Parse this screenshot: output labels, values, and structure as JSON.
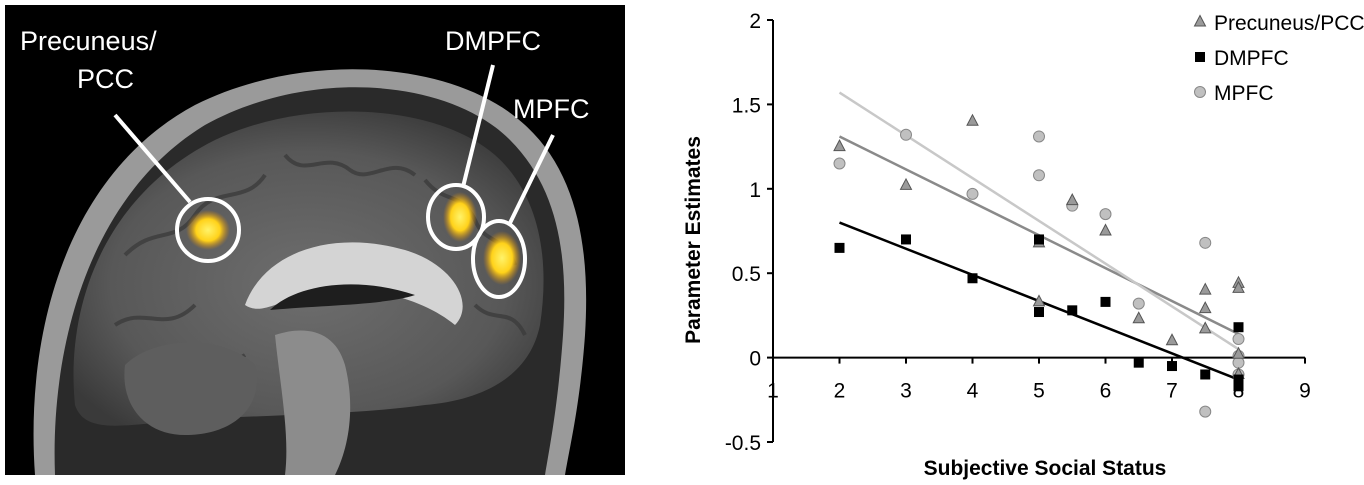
{
  "brain_image": {
    "labels": {
      "precuneus_line1": "Precuneus/",
      "precuneus_line2": "PCC",
      "dmpfc": "DMPFC",
      "mpfc": "MPFC"
    },
    "colors": {
      "background": "#000000",
      "activation": "#ffd21a",
      "ring": "#ffffff"
    }
  },
  "chart_data": {
    "type": "scatter",
    "title": "",
    "xlabel": "Subjective Social Status",
    "ylabel": "Parameter Estimates",
    "xlim": [
      1,
      9
    ],
    "ylim": [
      -0.5,
      2
    ],
    "x_ticks": [
      "1",
      "2",
      "3",
      "4",
      "5",
      "6",
      "7",
      "8",
      "9"
    ],
    "y_ticks": [
      "-0.5",
      "0",
      "0.5",
      "1",
      "1.5",
      "2"
    ],
    "x_tick_values": [
      1,
      2,
      3,
      4,
      5,
      6,
      7,
      8,
      9
    ],
    "y_tick_values": [
      -0.5,
      0,
      0.5,
      1,
      1.5,
      2
    ],
    "grid": false,
    "legend_position": "top-right",
    "series": [
      {
        "name": "Precuneus/PCC",
        "marker": "triangle",
        "color": "#9a9a9a",
        "points": [
          [
            2,
            1.25
          ],
          [
            3,
            1.02
          ],
          [
            4,
            1.4
          ],
          [
            5,
            0.68
          ],
          [
            5,
            0.33
          ],
          [
            5.5,
            0.93
          ],
          [
            6,
            0.75
          ],
          [
            6.5,
            0.23
          ],
          [
            7,
            0.1
          ],
          [
            7.5,
            0.4
          ],
          [
            7.5,
            0.29
          ],
          [
            7.5,
            0.17
          ],
          [
            8,
            0.44
          ],
          [
            8,
            0.41
          ],
          [
            8,
            0.02
          ],
          [
            8,
            -0.1
          ]
        ],
        "fit": [
          [
            2,
            1.31
          ],
          [
            8,
            0.14
          ]
        ]
      },
      {
        "name": "DMPFC",
        "marker": "square",
        "color": "#000000",
        "points": [
          [
            2,
            0.65
          ],
          [
            3,
            0.7
          ],
          [
            4,
            0.47
          ],
          [
            5,
            0.7
          ],
          [
            5,
            0.27
          ],
          [
            5.5,
            0.28
          ],
          [
            6,
            0.33
          ],
          [
            6.5,
            -0.03
          ],
          [
            7,
            -0.05
          ],
          [
            7.5,
            -0.1
          ],
          [
            8,
            0.18
          ],
          [
            8,
            -0.13
          ],
          [
            8,
            -0.17
          ]
        ],
        "fit": [
          [
            2,
            0.8
          ],
          [
            8,
            -0.13
          ]
        ]
      },
      {
        "name": "MPFC",
        "marker": "circle",
        "color": "#c0c0c0",
        "points": [
          [
            2,
            1.15
          ],
          [
            3,
            1.32
          ],
          [
            4,
            0.97
          ],
          [
            5,
            1.31
          ],
          [
            5,
            1.08
          ],
          [
            5.5,
            0.9
          ],
          [
            6,
            0.85
          ],
          [
            6.5,
            0.32
          ],
          [
            7.5,
            0.68
          ],
          [
            7.5,
            -0.32
          ],
          [
            8,
            0.11
          ],
          [
            8,
            0.01
          ],
          [
            8,
            -0.03
          ],
          [
            8,
            -0.1
          ]
        ],
        "fit": [
          [
            2,
            1.57
          ],
          [
            8,
            0.05
          ]
        ]
      }
    ]
  }
}
